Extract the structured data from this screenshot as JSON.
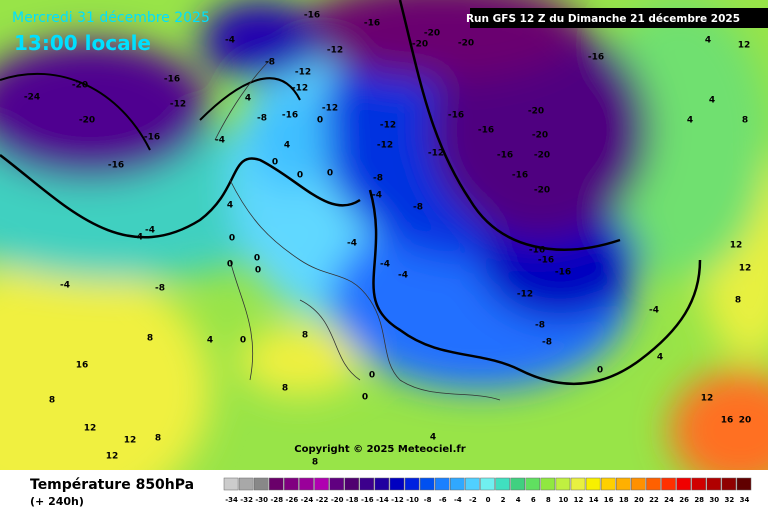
{
  "header": {
    "date": "Mercredi 31 décembre 2025",
    "time": "13:00 locale",
    "run": "Run GFS 12 Z du Dimanche 21 décembre 2025"
  },
  "copyright": "Copyright © 2025 Meteociel.fr",
  "footer": {
    "title": "Température 850hPa",
    "lead": "(+ 240h)"
  },
  "legend": {
    "values": [
      -34,
      -32,
      -30,
      -28,
      -26,
      -24,
      -22,
      -20,
      -18,
      -16,
      -14,
      -12,
      -10,
      -8,
      -6,
      -4,
      -2,
      0,
      2,
      4,
      6,
      8,
      10,
      12,
      14,
      16,
      18,
      20,
      22,
      24,
      26,
      28,
      30,
      32,
      34
    ],
    "colors": [
      "#cccccc",
      "#a8a8a8",
      "#888888",
      "#6a006a",
      "#800080",
      "#9a009a",
      "#b000b0",
      "#600080",
      "#500070",
      "#3c008c",
      "#2000a0",
      "#0000c0",
      "#0020e0",
      "#0050f0",
      "#1a80ff",
      "#30a8ff",
      "#50d0ff",
      "#70f0f0",
      "#40e0c0",
      "#40d080",
      "#60e060",
      "#90e840",
      "#c0f040",
      "#e8f040",
      "#f8f000",
      "#ffd000",
      "#ffb000",
      "#ff9000",
      "#ff6000",
      "#ff3000",
      "#f00000",
      "#d00000",
      "#b00000",
      "#900000",
      "#600000"
    ]
  },
  "map": {
    "labels": [
      -24,
      -20,
      -20,
      -16,
      -12,
      -16,
      -16,
      -4,
      -8,
      -12,
      -12,
      -16,
      -16,
      -20,
      -20,
      -20,
      -16,
      -12,
      -12,
      -16,
      -16,
      -16,
      -20,
      -20,
      -20,
      -16,
      -20,
      -12,
      -8,
      -4,
      -8,
      -4,
      -4,
      -4,
      -16,
      -16,
      -16,
      -12,
      -8,
      -8,
      -4,
      4,
      0,
      4,
      4,
      4,
      8,
      12,
      12,
      12,
      8,
      12,
      16,
      20,
      -4,
      -8,
      8,
      4,
      0,
      8,
      8,
      0,
      0,
      8,
      12,
      12,
      12,
      8,
      16,
      4,
      8,
      0,
      0,
      0,
      0,
      -4,
      -4,
      0,
      0,
      0,
      4,
      4,
      -4,
      -12,
      -12,
      -16,
      0,
      4,
      -8
    ]
  }
}
